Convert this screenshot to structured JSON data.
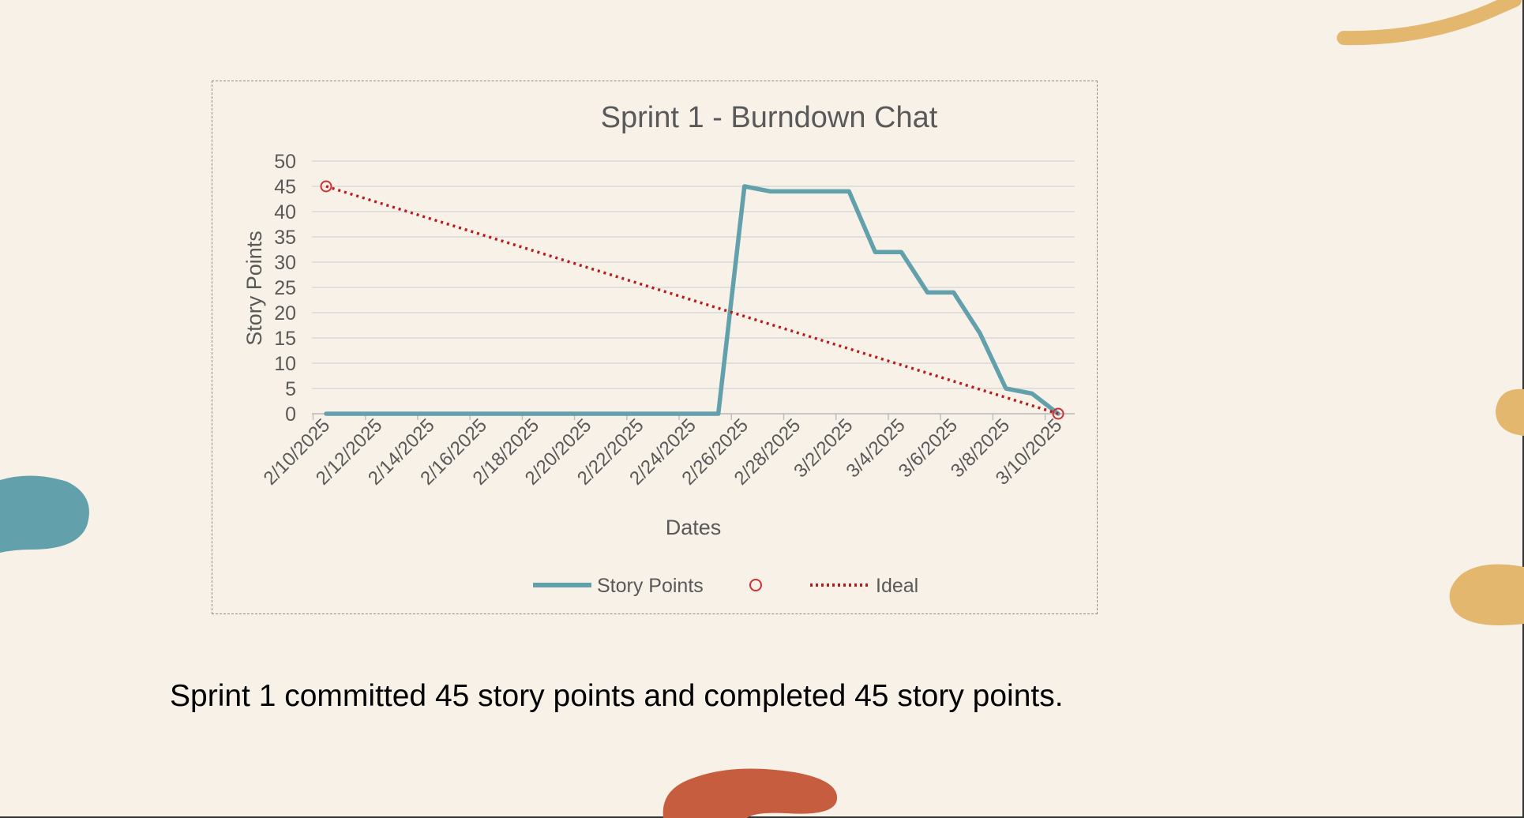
{
  "colors": {
    "background": "#f8f1e8",
    "series_story_points": "#62a0ab",
    "series_ideal": "#b71c1c",
    "text": "#595959",
    "gridline": "#d9d9d9",
    "deco_mustard": "#e4b76f",
    "deco_teal": "#62a0ab",
    "deco_rust": "#c65d3f"
  },
  "caption": "Sprint 1 committed 45 story points and completed 45 story points.",
  "chart_data": {
    "type": "line",
    "title": "Sprint 1 - Burndown Chat",
    "xlabel": "Dates",
    "ylabel": "Story Points",
    "ylim": [
      0,
      50
    ],
    "yticks": [
      0,
      5,
      10,
      15,
      20,
      25,
      30,
      35,
      40,
      45,
      50
    ],
    "x_tick_labels": [
      "2/10/2025",
      "2/12/2025",
      "2/14/2025",
      "2/16/2025",
      "2/18/2025",
      "2/20/2025",
      "2/22/2025",
      "2/24/2025",
      "2/26/2025",
      "2/28/2025",
      "3/2/2025",
      "3/4/2025",
      "3/6/2025",
      "3/8/2025",
      "3/10/2025"
    ],
    "x": [
      "2/10/2025",
      "2/11/2025",
      "2/12/2025",
      "2/13/2025",
      "2/14/2025",
      "2/15/2025",
      "2/16/2025",
      "2/17/2025",
      "2/18/2025",
      "2/19/2025",
      "2/20/2025",
      "2/21/2025",
      "2/22/2025",
      "2/23/2025",
      "2/24/2025",
      "2/25/2025",
      "2/26/2025",
      "2/27/2025",
      "2/28/2025",
      "3/1/2025",
      "3/2/2025",
      "3/3/2025",
      "3/4/2025",
      "3/5/2025",
      "3/6/2025",
      "3/7/2025",
      "3/8/2025",
      "3/9/2025",
      "3/10/2025"
    ],
    "grid": true,
    "legend_position": "bottom",
    "series": [
      {
        "name": "Story Points",
        "style": "solid",
        "values": [
          0,
          0,
          0,
          0,
          0,
          0,
          0,
          0,
          0,
          0,
          0,
          0,
          0,
          0,
          0,
          0,
          45,
          44,
          44,
          44,
          44,
          32,
          32,
          24,
          24,
          16,
          5,
          4,
          0
        ]
      },
      {
        "name": "",
        "style": "marker",
        "points": [
          {
            "x": "2/10/2025",
            "y": 45
          },
          {
            "x": "3/10/2025",
            "y": 0
          }
        ]
      },
      {
        "name": "Ideal",
        "style": "dotted",
        "points": [
          {
            "x": "2/10/2025",
            "y": 45
          },
          {
            "x": "3/10/2025",
            "y": 0
          }
        ]
      }
    ]
  }
}
